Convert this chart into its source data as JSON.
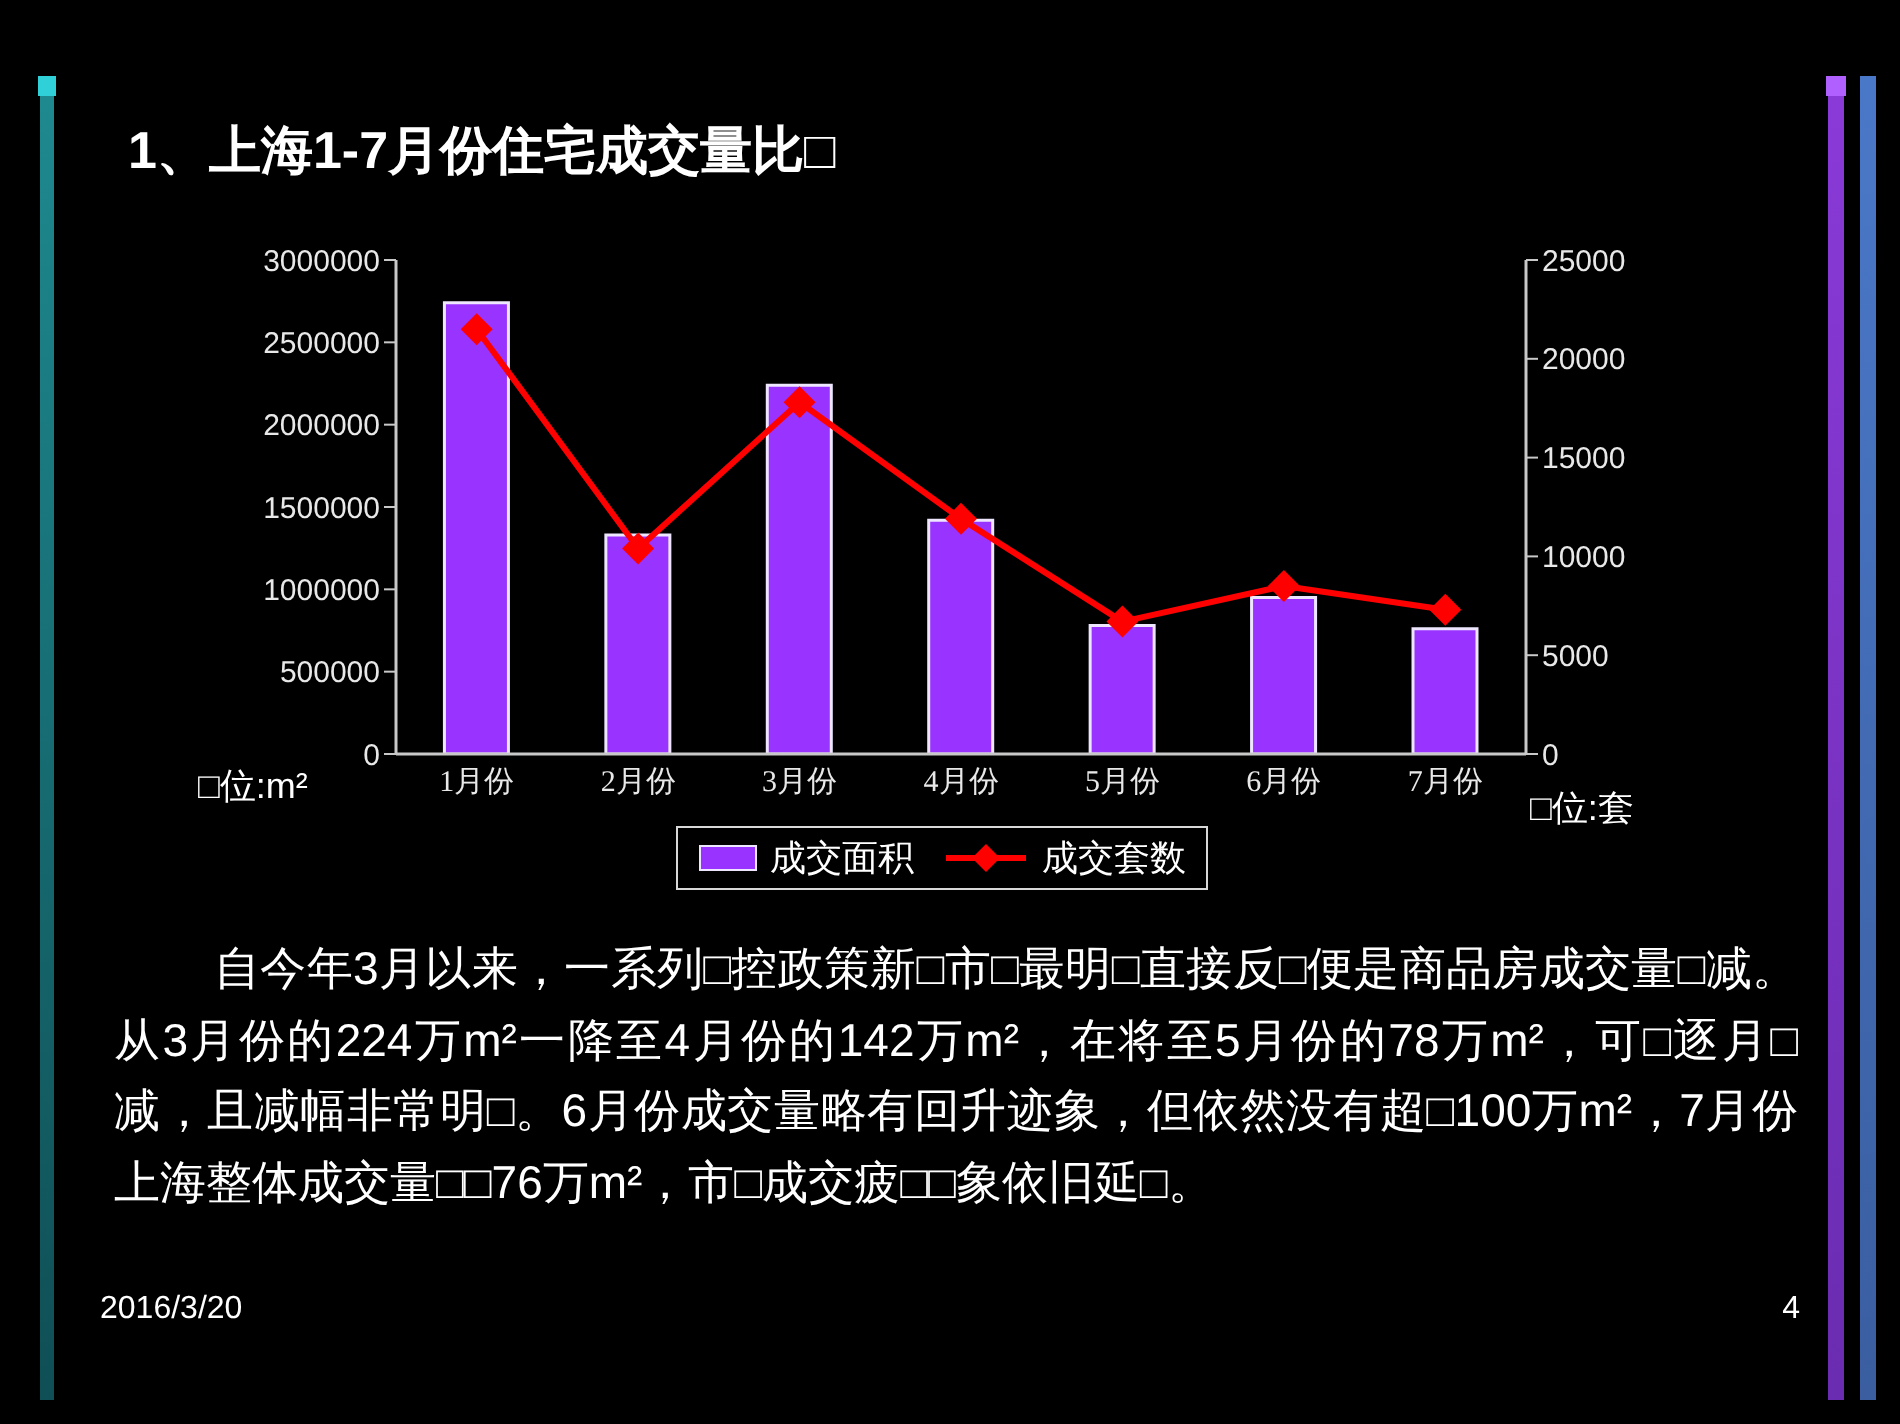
{
  "chart_data": {
    "type": "bar",
    "title": "1、上海1-7月份住宅成交量比□",
    "ylabel": "□位:m²",
    "y2label": "□位:套",
    "categories": [
      "1月份",
      "2月份",
      "3月份",
      "4月份",
      "5月份",
      "6月份",
      "7月份"
    ],
    "series": [
      {
        "name": "成交面积",
        "color": "#9933ff",
        "values": [
          2740000,
          1330000,
          2240000,
          1420000,
          780000,
          950000,
          760000
        ]
      },
      {
        "name": "成交套数",
        "type": "line",
        "axis": "y2",
        "color": "#ff0000",
        "values": [
          21500,
          10400,
          17800,
          11900,
          6700,
          8500,
          7300
        ]
      }
    ],
    "ylim": [
      0,
      3000000
    ],
    "yticks": [
      0,
      500000,
      1000000,
      1500000,
      2000000,
      2500000,
      3000000
    ],
    "y2lim": [
      0,
      25000
    ],
    "y2ticks": [
      0,
      5000,
      10000,
      15000,
      20000,
      25000
    ],
    "marker": "diamond",
    "legend": "bottom",
    "annotations": [
      "自今年3月以来，一系列□控政策新□市□最明□直接反□便是商品房成交量□减。从3月份的224万m²一降至4月份的142万m²，在将至5月份的78万m²，可□逐月□减，且减幅非常明□。6月份成交量略有回升迹象，但依然没有超□100万m²，7月份上海整体成交量□□76万m²，市□成交疲□□象依旧延□。",
      "2016/3/20",
      "4"
    ]
  }
}
